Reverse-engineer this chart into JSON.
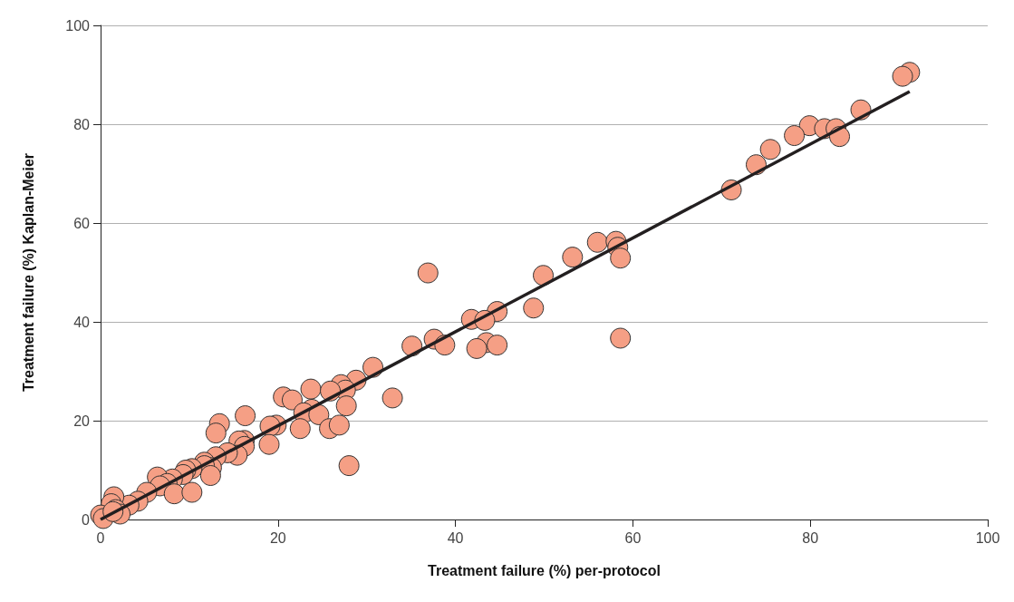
{
  "chart_data": {
    "type": "scatter",
    "xlabel": "Treatment failure (%) per-protocol",
    "ylabel": "Treatment failure (%) Kaplan-Meier",
    "xlim": [
      0,
      100
    ],
    "ylim": [
      0,
      100
    ],
    "xticks": [
      0,
      20,
      40,
      60,
      80,
      100
    ],
    "yticks": [
      0,
      20,
      40,
      60,
      80,
      100
    ],
    "grid": "y",
    "series": [
      {
        "marker": "circle",
        "color": "#f59f85",
        "x": [
          91.2,
          90.4,
          85.7,
          79.9,
          81.6,
          82.9,
          83.3,
          78.2,
          75.5,
          73.9,
          71.1,
          56.0,
          58.1,
          58.3,
          58.6,
          53.2,
          49.9,
          36.9,
          48.8,
          44.7,
          41.8,
          43.3,
          43.5,
          42.4,
          44.7,
          58.6,
          35.1,
          37.6,
          38.8,
          30.7,
          28.8,
          27.1,
          27.6,
          23.7,
          25.9,
          32.9,
          20.6,
          21.6,
          27.7,
          23.8,
          22.9,
          24.6,
          16.3,
          13.4,
          19.8,
          19.1,
          22.5,
          25.8,
          26.9,
          19.0,
          13.0,
          16.2,
          15.6,
          16.2,
          15.4,
          14.3,
          13.0,
          11.7,
          12.5,
          11.7,
          12.4,
          28.0,
          10.3,
          9.6,
          9.3,
          8.1,
          6.4,
          7.5,
          6.7,
          8.3,
          10.3,
          5.2,
          4.2,
          3.2,
          1.5,
          1.2,
          1.7,
          0.0,
          0.3,
          2.2,
          1.4
        ],
        "values": [
          90.5,
          89.7,
          82.9,
          79.7,
          79.1,
          79.1,
          77.5,
          77.7,
          74.9,
          71.8,
          66.7,
          56.1,
          56.3,
          55.1,
          52.9,
          53.1,
          49.4,
          49.9,
          42.8,
          42.1,
          40.5,
          40.3,
          35.8,
          34.6,
          35.3,
          36.7,
          35.1,
          36.5,
          35.3,
          30.8,
          28.2,
          27.3,
          26.2,
          26.4,
          26.0,
          24.6,
          24.8,
          24.2,
          23.0,
          22.3,
          21.6,
          21.2,
          21.0,
          19.4,
          19.1,
          18.9,
          18.4,
          18.4,
          19.1,
          15.2,
          17.5,
          16.0,
          15.9,
          14.8,
          13.0,
          13.5,
          12.7,
          11.6,
          10.5,
          10.9,
          8.9,
          10.9,
          10.3,
          10.0,
          9.1,
          8.2,
          8.6,
          7.3,
          6.8,
          5.2,
          5.5,
          5.5,
          3.7,
          2.9,
          4.6,
          3.2,
          2.0,
          0.9,
          0.2,
          1.1,
          1.6
        ]
      },
      {
        "type": "line",
        "marker": "none",
        "color": "#231f20",
        "x": [
          0,
          91.2
        ],
        "values": [
          0,
          86.6
        ]
      }
    ]
  }
}
